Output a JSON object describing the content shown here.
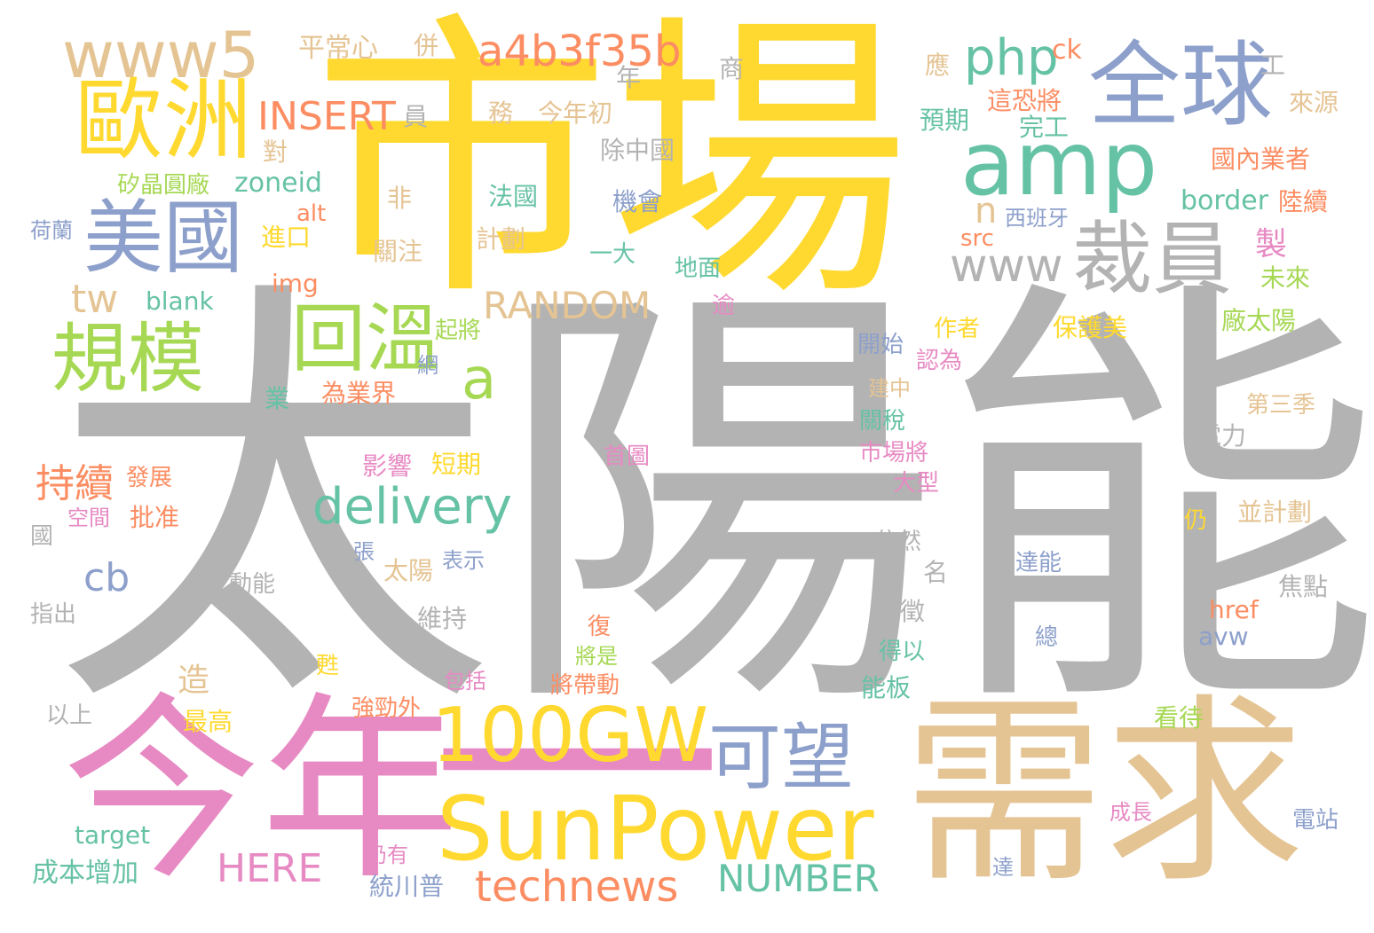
{
  "palette": {
    "gray": "#b3b3b3",
    "yellow": "#ffd92f",
    "tan": "#e5c494",
    "pink": "#e78ac3",
    "blue": "#8da0cb",
    "green": "#66c2a5",
    "lime": "#a6d854",
    "orange": "#fc8d62"
  },
  "words": [
    {
      "text": "太陽能",
      "color": "gray"
    },
    {
      "text": "市場",
      "color": "yellow"
    },
    {
      "text": "需求",
      "color": "tan"
    },
    {
      "text": "今年",
      "color": "pink"
    },
    {
      "text": "一",
      "color": "pink"
    },
    {
      "text": "SunPower",
      "color": "yellow"
    },
    {
      "text": "100GW",
      "color": "yellow"
    },
    {
      "text": "全球",
      "color": "blue"
    },
    {
      "text": "amp",
      "color": "green"
    },
    {
      "text": "歐洲",
      "color": "yellow"
    },
    {
      "text": "美國",
      "color": "blue"
    },
    {
      "text": "裁員",
      "color": "gray"
    },
    {
      "text": "www5",
      "color": "tan"
    },
    {
      "text": "規模",
      "color": "lime"
    },
    {
      "text": "回溫",
      "color": "lime"
    },
    {
      "text": "可望",
      "color": "blue"
    },
    {
      "text": "www",
      "color": "gray"
    },
    {
      "text": "php",
      "color": "green"
    },
    {
      "text": "a4b3f35b",
      "color": "orange"
    },
    {
      "text": "delivery",
      "color": "green"
    },
    {
      "text": "technews",
      "color": "orange"
    },
    {
      "text": "a",
      "color": "lime"
    },
    {
      "text": "INSERT",
      "color": "orange"
    },
    {
      "text": "RANDOM",
      "color": "tan"
    },
    {
      "text": "NUMBER",
      "color": "green"
    },
    {
      "text": "HERE",
      "color": "pink"
    },
    {
      "text": "持續",
      "color": "orange"
    },
    {
      "text": "tw",
      "color": "tan"
    },
    {
      "text": "cb",
      "color": "blue"
    },
    {
      "text": "n",
      "color": "tan"
    },
    {
      "text": "ck",
      "color": "orange"
    },
    {
      "text": "平常心",
      "color": "tan"
    },
    {
      "text": "併",
      "color": "tan"
    },
    {
      "text": "年",
      "color": "gray"
    },
    {
      "text": "商",
      "color": "gray"
    },
    {
      "text": "應",
      "color": "tan"
    },
    {
      "text": "工",
      "color": "gray"
    },
    {
      "text": "員",
      "color": "gray"
    },
    {
      "text": "務",
      "color": "tan"
    },
    {
      "text": "今年初",
      "color": "tan"
    },
    {
      "text": "這恐將",
      "color": "orange"
    },
    {
      "text": "預期",
      "color": "green"
    },
    {
      "text": "完工",
      "color": "green"
    },
    {
      "text": "來源",
      "color": "tan"
    },
    {
      "text": "對",
      "color": "tan"
    },
    {
      "text": "除中國",
      "color": "gray"
    },
    {
      "text": "國內業者",
      "color": "orange"
    },
    {
      "text": "矽晶圓廠",
      "color": "lime"
    },
    {
      "text": "zoneid",
      "color": "green"
    },
    {
      "text": "法國",
      "color": "green"
    },
    {
      "text": "機會",
      "color": "blue"
    },
    {
      "text": "border",
      "color": "green"
    },
    {
      "text": "陸續",
      "color": "orange"
    },
    {
      "text": "非",
      "color": "tan"
    },
    {
      "text": "alt",
      "color": "orange"
    },
    {
      "text": "荷蘭",
      "color": "blue"
    },
    {
      "text": "進口",
      "color": "yellow"
    },
    {
      "text": "關注",
      "color": "tan"
    },
    {
      "text": "計劃",
      "color": "tan"
    },
    {
      "text": "一大",
      "color": "green"
    },
    {
      "text": "西班牙",
      "color": "blue"
    },
    {
      "text": "src",
      "color": "orange"
    },
    {
      "text": "製",
      "color": "pink"
    },
    {
      "text": "img",
      "color": "orange"
    },
    {
      "text": "地面",
      "color": "green"
    },
    {
      "text": "blank",
      "color": "green"
    },
    {
      "text": "未來",
      "color": "lime"
    },
    {
      "text": "逾",
      "color": "pink"
    },
    {
      "text": "起將",
      "color": "lime"
    },
    {
      "text": "作者",
      "color": "yellow"
    },
    {
      "text": "保護美",
      "color": "yellow"
    },
    {
      "text": "廠太陽",
      "color": "lime"
    },
    {
      "text": "開始",
      "color": "blue"
    },
    {
      "text": "認為",
      "color": "pink"
    },
    {
      "text": "業",
      "color": "green"
    },
    {
      "text": "為業界",
      "color": "orange"
    },
    {
      "text": "網",
      "color": "blue"
    },
    {
      "text": "建中",
      "color": "tan"
    },
    {
      "text": "關稅",
      "color": "green"
    },
    {
      "text": "第三季",
      "color": "tan"
    },
    {
      "text": "影響",
      "color": "pink"
    },
    {
      "text": "短期",
      "color": "yellow"
    },
    {
      "text": "首圖",
      "color": "pink"
    },
    {
      "text": "市場將",
      "color": "pink"
    },
    {
      "text": "電力",
      "color": "gray"
    },
    {
      "text": "發展",
      "color": "orange"
    },
    {
      "text": "大型",
      "color": "pink"
    },
    {
      "text": "批准",
      "color": "orange"
    },
    {
      "text": "空間",
      "color": "pink"
    },
    {
      "text": "仍",
      "color": "yellow"
    },
    {
      "text": "並計劃",
      "color": "tan"
    },
    {
      "text": "國",
      "color": "gray"
    },
    {
      "text": "依然",
      "color": "gray"
    },
    {
      "text": "張",
      "color": "blue"
    },
    {
      "text": "表示",
      "color": "blue"
    },
    {
      "text": "太陽",
      "color": "tan"
    },
    {
      "text": "達能",
      "color": "blue"
    },
    {
      "text": "名",
      "color": "gray"
    },
    {
      "text": "焦點",
      "color": "gray"
    },
    {
      "text": "動能",
      "color": "gray"
    },
    {
      "text": "課徵",
      "color": "gray"
    },
    {
      "text": "指出",
      "color": "gray"
    },
    {
      "text": "維持",
      "color": "gray"
    },
    {
      "text": "href",
      "color": "orange"
    },
    {
      "text": "復",
      "color": "orange"
    },
    {
      "text": "avw",
      "color": "blue"
    },
    {
      "text": "總",
      "color": "blue"
    },
    {
      "text": "得以",
      "color": "green"
    },
    {
      "text": "將是",
      "color": "lime"
    },
    {
      "text": "甦",
      "color": "yellow"
    },
    {
      "text": "包括",
      "color": "pink"
    },
    {
      "text": "將帶動",
      "color": "orange"
    },
    {
      "text": "造",
      "color": "tan"
    },
    {
      "text": "能板",
      "color": "green"
    },
    {
      "text": "以上",
      "color": "gray"
    },
    {
      "text": "強勁外",
      "color": "orange"
    },
    {
      "text": "最高",
      "color": "yellow"
    },
    {
      "text": "看待",
      "color": "lime"
    },
    {
      "text": "成長",
      "color": "pink"
    },
    {
      "text": "電站",
      "color": "blue"
    },
    {
      "text": "target",
      "color": "green"
    },
    {
      "text": "仍有",
      "color": "pink"
    },
    {
      "text": "達",
      "color": "blue"
    },
    {
      "text": "成本增加",
      "color": "green"
    },
    {
      "text": "統川普",
      "color": "blue"
    }
  ]
}
